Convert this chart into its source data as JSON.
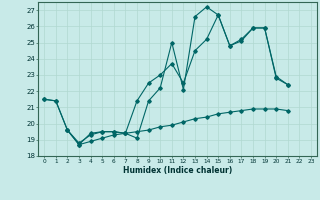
{
  "xlabel": "Humidex (Indice chaleur)",
  "bg_color": "#c8eae8",
  "grid_color": "#b0d8d0",
  "line_color": "#006666",
  "xlim": [
    -0.5,
    23.5
  ],
  "ylim": [
    18,
    27.5
  ],
  "yticks": [
    18,
    19,
    20,
    21,
    22,
    23,
    24,
    25,
    26,
    27
  ],
  "xticks": [
    0,
    1,
    2,
    3,
    4,
    5,
    6,
    7,
    8,
    9,
    10,
    11,
    12,
    13,
    14,
    15,
    16,
    17,
    18,
    19,
    20,
    21,
    22,
    23
  ],
  "line1_x": [
    0,
    1,
    2,
    3,
    4,
    5,
    6,
    7,
    8,
    9,
    10,
    11,
    12,
    13,
    14,
    15,
    16,
    17,
    18,
    19,
    20,
    21,
    22,
    23
  ],
  "line1_y": [
    21.5,
    21.4,
    19.6,
    18.7,
    19.4,
    19.5,
    19.5,
    19.4,
    19.1,
    21.4,
    22.2,
    25.0,
    22.1,
    26.6,
    27.2,
    26.7,
    24.8,
    25.1,
    25.9,
    25.9,
    22.8,
    22.4,
    null,
    null
  ],
  "line2_x": [
    0,
    1,
    2,
    3,
    4,
    5,
    6,
    7,
    8,
    9,
    10,
    11,
    12,
    13,
    14,
    15,
    16,
    17,
    18,
    19,
    20,
    21,
    22,
    23
  ],
  "line2_y": [
    21.5,
    21.4,
    19.6,
    18.8,
    19.3,
    19.5,
    19.5,
    19.4,
    21.4,
    22.5,
    23.0,
    23.7,
    22.5,
    24.5,
    25.2,
    26.7,
    24.8,
    25.2,
    25.9,
    25.9,
    22.9,
    22.4,
    null,
    null
  ],
  "line3_x": [
    2,
    3,
    4,
    5,
    6,
    7,
    8,
    9,
    10,
    11,
    12,
    13,
    14,
    15,
    16,
    17,
    18,
    19,
    20,
    21,
    22,
    23
  ],
  "line3_y": [
    19.6,
    18.7,
    18.9,
    19.1,
    19.3,
    19.4,
    19.5,
    19.6,
    19.8,
    19.9,
    20.1,
    20.3,
    20.4,
    20.6,
    20.7,
    20.8,
    20.9,
    20.9,
    20.9,
    20.8,
    null,
    null
  ]
}
